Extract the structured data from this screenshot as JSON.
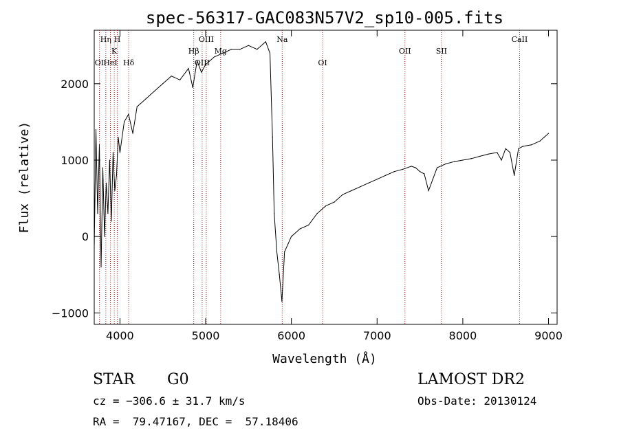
{
  "chart_data": {
    "type": "line",
    "title": "spec-56317-GAC083N57V2_sp10-005.fits",
    "xlabel": "Wavelength (Å)",
    "ylabel": "Flux (relative)",
    "xlim": [
      3700,
      9100
    ],
    "ylim": [
      -1150,
      2700
    ],
    "xticks": [
      4000,
      5000,
      6000,
      7000,
      8000,
      9000
    ],
    "yticks": [
      -1000,
      0,
      1000,
      2000
    ],
    "grid": false,
    "line_color": "#000000",
    "marker_color": "#8b1a1a",
    "series": [
      {
        "values_description_free": true,
        "x": [
          3700,
          3720,
          3740,
          3760,
          3780,
          3800,
          3820,
          3840,
          3860,
          3880,
          3900,
          3920,
          3940,
          3960,
          3980,
          4000,
          4050,
          4100,
          4150,
          4200,
          4300,
          4400,
          4500,
          4600,
          4700,
          4800,
          4850,
          4900,
          4950,
          5000,
          5100,
          5200,
          5300,
          5400,
          5500,
          5600,
          5700,
          5750,
          5780,
          5800,
          5830,
          5860,
          5890,
          5920,
          5960,
          6000,
          6100,
          6200,
          6300,
          6400,
          6500,
          6600,
          6700,
          6800,
          6900,
          7000,
          7100,
          7200,
          7300,
          7400,
          7450,
          7500,
          7550,
          7600,
          7650,
          7700,
          7800,
          7900,
          8000,
          8100,
          8200,
          8300,
          8400,
          8450,
          8500,
          8550,
          8600,
          8650,
          8700,
          8800,
          8900,
          8950,
          9000
        ],
        "y": [
          -150,
          1400,
          300,
          1200,
          -400,
          900,
          0,
          700,
          300,
          1000,
          200,
          1100,
          600,
          800,
          1300,
          1100,
          1500,
          1600,
          1350,
          1700,
          1800,
          1900,
          2000,
          2100,
          2050,
          2200,
          1950,
          2300,
          2150,
          2250,
          2350,
          2400,
          2450,
          2450,
          2500,
          2450,
          2550,
          2400,
          1300,
          300,
          -200,
          -500,
          -850,
          -200,
          -100,
          0,
          100,
          150,
          300,
          400,
          450,
          550,
          600,
          650,
          700,
          750,
          800,
          850,
          880,
          920,
          900,
          850,
          820,
          600,
          750,
          900,
          950,
          980,
          1000,
          1020,
          1050,
          1080,
          1100,
          1000,
          1150,
          1100,
          800,
          1150,
          1180,
          1200,
          1250,
          1300,
          1350
        ]
      }
    ],
    "line_markers": [
      {
        "label": "OI",
        "x": 3760,
        "row": 3
      },
      {
        "label": "Hη",
        "x": 3835,
        "row": 1
      },
      {
        "label": "HeI",
        "x": 3889,
        "row": 3
      },
      {
        "label": "K",
        "x": 3934,
        "row": 2
      },
      {
        "label": "H",
        "x": 3969,
        "row": 1
      },
      {
        "label": "Hδ",
        "x": 4102,
        "row": 3
      },
      {
        "label": "Hβ",
        "x": 4861,
        "row": 2
      },
      {
        "label": "OIII",
        "x": 4959,
        "row": 3
      },
      {
        "label": "OIII",
        "x": 5007,
        "row": 1
      },
      {
        "label": "Mg",
        "x": 5175,
        "row": 2
      },
      {
        "label": "Na",
        "x": 5893,
        "row": 1
      },
      {
        "label": "OI",
        "x": 6364,
        "row": 3
      },
      {
        "label": "OII",
        "x": 7325,
        "row": 2
      },
      {
        "label": "SII",
        "x": 7751,
        "row": 2
      },
      {
        "label": "CaII",
        "x": 8662,
        "row": 1
      }
    ]
  },
  "info": {
    "object_type": "STAR",
    "subclass": "G0",
    "survey": "LAMOST DR2",
    "redshift": "cz = −306.6 ± 31.7 km/s",
    "obs_date": "Obs-Date: 20130124",
    "coords": "RA =  79.47167, DEC =  57.18406"
  }
}
